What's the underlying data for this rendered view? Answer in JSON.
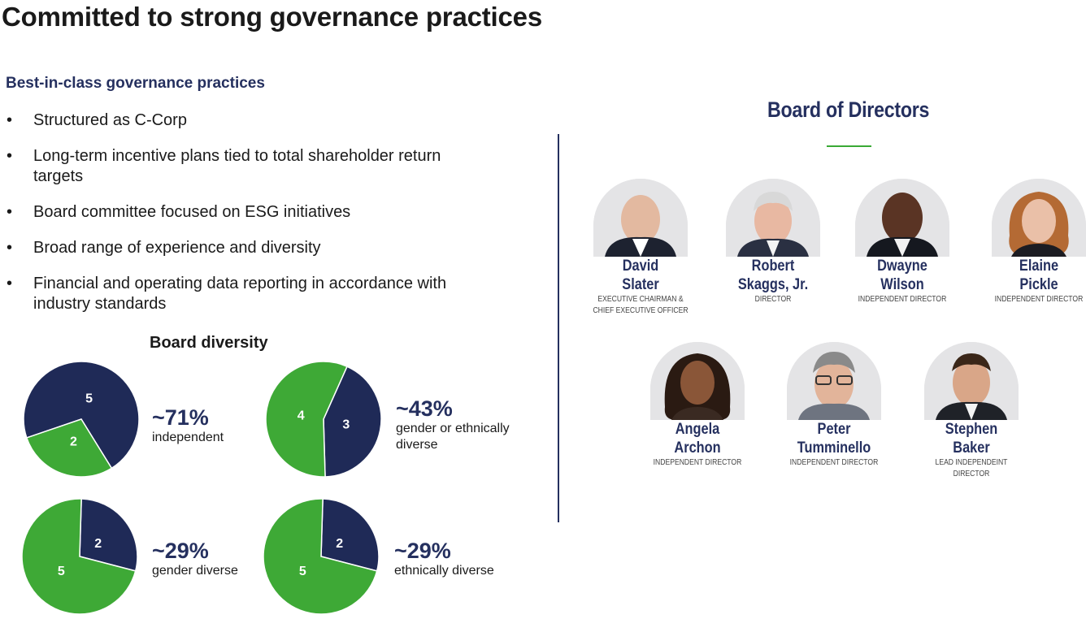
{
  "title": "Committed to strong governance practices",
  "subhead": "Best-in-class governance practices",
  "bullets": [
    "Structured as C-Corp",
    "Long-term incentive plans tied to total shareholder return targets",
    "Board committee focused on ESG initiatives",
    "Broad range of experience and diversity",
    "Financial and operating data reporting in accordance with industry standards"
  ],
  "bullet_glyph": "•",
  "diversity_title": "Board diversity",
  "colors": {
    "navy": "#1f2a57",
    "green": "#3ea936",
    "text_navy": "#25305f"
  },
  "chart_data": [
    {
      "type": "pie",
      "slices": [
        {
          "value": 5,
          "label": "5",
          "color": "#1f2a57"
        },
        {
          "value": 2,
          "label": "2",
          "color": "#3ea936"
        }
      ]
    },
    {
      "type": "pie",
      "slices": [
        {
          "value": 3,
          "label": "3",
          "color": "#1f2a57"
        },
        {
          "value": 4,
          "label": "4",
          "color": "#3ea936"
        }
      ]
    },
    {
      "type": "pie",
      "slices": [
        {
          "value": 2,
          "label": "2",
          "color": "#1f2a57"
        },
        {
          "value": 5,
          "label": "5",
          "color": "#3ea936"
        }
      ]
    },
    {
      "type": "pie",
      "slices": [
        {
          "value": 2,
          "label": "2",
          "color": "#1f2a57"
        },
        {
          "value": 5,
          "label": "5",
          "color": "#3ea936"
        }
      ]
    }
  ],
  "stats": [
    {
      "pct": "~71%",
      "label": "independent"
    },
    {
      "pct": "~43%",
      "label": "gender or ethnically diverse"
    },
    {
      "pct": "~29%",
      "label": "gender diverse"
    },
    {
      "pct": "~29%",
      "label": "ethnically diverse"
    }
  ],
  "board_title": "Board of Directors",
  "directors": [
    {
      "first": "David",
      "last": "Slater",
      "role": "EXECUTIVE CHAIRMAN & CHIEF EXECUTIVE OFFICER"
    },
    {
      "first": "Robert",
      "last": "Skaggs, Jr.",
      "role": "DIRECTOR"
    },
    {
      "first": "Dwayne",
      "last": "Wilson",
      "role": "INDEPENDENT DIRECTOR"
    },
    {
      "first": "Elaine",
      "last": "Pickle",
      "role": "INDEPENDENT DIRECTOR"
    },
    {
      "first": "Angela",
      "last": "Archon",
      "role": "INDEPENDENT DIRECTOR"
    },
    {
      "first": "Peter",
      "last": "Tumminello",
      "role": "INDEPENDENT DIRECTOR"
    },
    {
      "first": "Stephen",
      "last": "Baker",
      "role": "LEAD INDEPENDEINT DIRECTOR"
    }
  ]
}
